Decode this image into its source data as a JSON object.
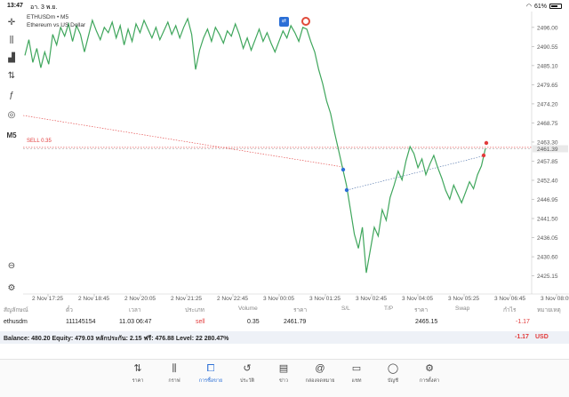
{
  "status_bar": {
    "time": "13:47",
    "date": "อา. 3 พ.ย.",
    "battery": "61%",
    "battery_level": 0.61
  },
  "toolbar": {
    "items": [
      {
        "name": "crosshair-icon",
        "glyph": "✛"
      },
      {
        "name": "candles-icon",
        "glyph": "⫼"
      },
      {
        "name": "bar-chart-icon",
        "glyph": "▟"
      },
      {
        "name": "sliders-icon",
        "glyph": "⇅"
      },
      {
        "name": "function-icon",
        "glyph": "ƒ"
      },
      {
        "name": "shapes-icon",
        "glyph": "◎"
      },
      {
        "name": "timeframe-button",
        "glyph": "M5"
      },
      {
        "name": "zoom-icon",
        "glyph": "⊖"
      },
      {
        "name": "chart-settings-icon",
        "glyph": "⚙"
      }
    ]
  },
  "chart": {
    "symbol": "ETHUSDm • M5",
    "description": "Ethereum vs US Dollar",
    "sell_label": "SELL 0.35",
    "current_price": "2461.39",
    "line_color": "#3fa65c",
    "sell_line_color": "#e23b3b",
    "y_ticks": [
      "2496.00",
      "2490.55",
      "2485.10",
      "2479.65",
      "2474.20",
      "2468.75",
      "2463.30",
      "2457.85",
      "2452.40",
      "2446.95",
      "2441.50",
      "2436.05",
      "2430.60",
      "2425.15"
    ],
    "x_ticks": [
      "2 Nov 17:25",
      "2 Nov 18:45",
      "2 Nov 20:05",
      "2 Nov 21:25",
      "2 Nov 22:45",
      "3 Nov 00:05",
      "3 Nov 01:25",
      "3 Nov 02:45",
      "3 Nov 04:05",
      "3 Nov 05:25",
      "3 Nov 06:45",
      "3 Nov 08:05"
    ]
  },
  "chart_data": {
    "type": "line",
    "ylim": [
      2421.5,
      2499.0
    ],
    "series": [
      {
        "values": [
          2488.0,
          2492.5,
          2486.0,
          2490.0,
          2484.5,
          2489.0,
          2485.5,
          2494.0,
          2491.0,
          2496.0,
          2493.5,
          2497.0,
          2492.0,
          2496.5,
          2494.0,
          2489.0,
          2493.5,
          2498.0,
          2495.0,
          2492.5,
          2496.0,
          2494.5,
          2497.5,
          2493.0,
          2496.5,
          2491.0,
          2495.5,
          2492.0,
          2497.0,
          2494.5,
          2498.0,
          2495.5,
          2493.0,
          2496.0,
          2492.5,
          2495.0,
          2497.5,
          2494.0,
          2496.5,
          2493.0,
          2496.0,
          2498.5,
          2494.0,
          2484.0,
          2489.5,
          2493.0,
          2495.5,
          2492.0,
          2496.0,
          2494.0,
          2491.5,
          2495.0,
          2493.5,
          2497.0,
          2494.0,
          2490.0,
          2493.0,
          2489.5,
          2492.5,
          2495.5,
          2492.0,
          2494.5,
          2491.5,
          2489.0,
          2492.0,
          2495.0,
          2493.0,
          2496.5,
          2494.5,
          2492.0,
          2496.0,
          2495.5,
          2492.0,
          2489.0,
          2484.0,
          2480.0,
          2475.0,
          2471.5,
          2466.0,
          2461.0,
          2456.0,
          2451.0,
          2444.0,
          2437.0,
          2433.0,
          2439.0,
          2426.0,
          2432.5,
          2439.0,
          2436.5,
          2444.0,
          2441.0,
          2447.5,
          2451.0,
          2455.0,
          2452.5,
          2458.0,
          2462.0,
          2460.0,
          2456.0,
          2458.5,
          2454.0,
          2457.0,
          2459.5,
          2456.0,
          2453.0,
          2449.5,
          2447.0,
          2451.0,
          2448.5,
          2446.0,
          2449.0,
          2452.0,
          2450.0,
          2454.0,
          2456.5,
          2461.5
        ]
      }
    ],
    "positions": [
      {
        "label": "SELL 0.35",
        "open_price": 2461.79
      }
    ]
  },
  "positions_table": {
    "headers": [
      "สัญลักษณ์",
      "ตั๋ว",
      "เวลา",
      "ประเภท",
      "Volume",
      "ราคา",
      "S/L",
      "T/P",
      "ราคา",
      "Swap",
      "กำไร",
      "หมายเหตุ"
    ],
    "row": {
      "symbol": "ethusdm",
      "ticket": "111145154",
      "time": "11.03 06:47",
      "type": "sell",
      "volume": "0.35",
      "open_price": "2461.79",
      "current_price": "2465.15",
      "profit": "-1.17"
    }
  },
  "balance": {
    "summary": "Balance: 480.20  Equity: 479.03  หลักประกัน: 2.15  ฟรี: 476.88  Level: 22 280.47%",
    "total": "-1.17",
    "currency": "USD"
  },
  "tabbar": {
    "tabs": [
      {
        "name": "tab-quotes",
        "icon": "⇅",
        "label": "ราคา"
      },
      {
        "name": "tab-charts",
        "icon": "⫼",
        "label": "กราฟ"
      },
      {
        "name": "tab-trade",
        "icon": "⧠",
        "label": "การซื้อขาย",
        "active": true
      },
      {
        "name": "tab-history",
        "icon": "↺",
        "label": "ประวัติ"
      },
      {
        "name": "tab-news",
        "icon": "▤",
        "label": "ข่าว"
      },
      {
        "name": "tab-mailbox",
        "icon": "@",
        "label": "กล่องจดหมาย"
      },
      {
        "name": "tab-chat",
        "icon": "▭",
        "label": "แชท"
      },
      {
        "name": "tab-accounts",
        "icon": "◯",
        "label": "บัญชี"
      },
      {
        "name": "tab-settings",
        "icon": "⚙",
        "label": "การตั้งค่า"
      }
    ]
  }
}
